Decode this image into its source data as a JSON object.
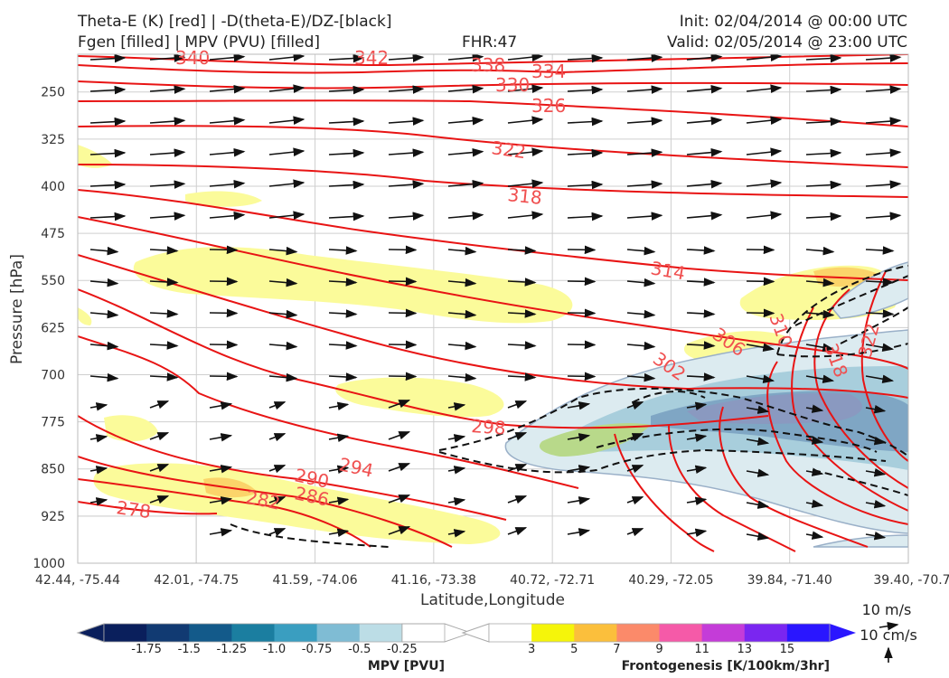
{
  "header": {
    "line1_left": "Theta-E (K) [red] | -D(theta-E)/DZ-[black]",
    "line2_left": "Fgen [filled] | MPV (PVU) [filled]",
    "fhr": "FHR:47",
    "init": "Init: 02/04/2014 @ 00:00 UTC",
    "valid": "Valid: 02/05/2014 @ 23:00 UTC"
  },
  "chart_data": {
    "type": "cross-section",
    "xlabel": "Latitude,Longitude",
    "ylabel": "Pressure [hPa]",
    "x_ticks": [
      "42.44, -75.44",
      "42.01, -74.75",
      "41.59, -74.06",
      "41.16, -73.38",
      "40.72, -72.71",
      "40.29, -72.05",
      "39.84, -71.40",
      "39.40, -70.7"
    ],
    "y_ticks": [
      250,
      325,
      400,
      475,
      550,
      625,
      700,
      775,
      850,
      925,
      1000
    ],
    "ylim": [
      1000,
      190
    ],
    "theta_e_labels": [
      "340",
      "342",
      "338",
      "334",
      "330",
      "326",
      "322",
      "318",
      "314",
      "310",
      "306",
      "302",
      "298",
      "294",
      "290",
      "286",
      "282",
      "278",
      "318",
      "322"
    ],
    "mpv_colorbar": {
      "title": "MPV [PVU]",
      "ticks": [
        "-1.75",
        "-1.5",
        "-1.25",
        "-1.0",
        "-0.75",
        "-0.5",
        "-0.25"
      ],
      "colors": [
        "#0a1f5c",
        "#113a72",
        "#135a8a",
        "#1b7ea0",
        "#3a9ec0",
        "#7fbcd4",
        "#bcdde6",
        "#ffffff"
      ]
    },
    "fgen_colorbar": {
      "title": "Frontogenesis [K/100km/3hr]",
      "ticks": [
        "3",
        "5",
        "7",
        "9",
        "11",
        "13",
        "15"
      ],
      "colors": [
        "#ffffff",
        "#f5f50a",
        "#fbbf3c",
        "#fb8a6a",
        "#f55aa8",
        "#c43cd8",
        "#7a26f0",
        "#2a16ff"
      ]
    },
    "wind_reference": {
      "horizontal": "10 m/s",
      "vertical": "10 cm/s"
    },
    "grid": true
  }
}
